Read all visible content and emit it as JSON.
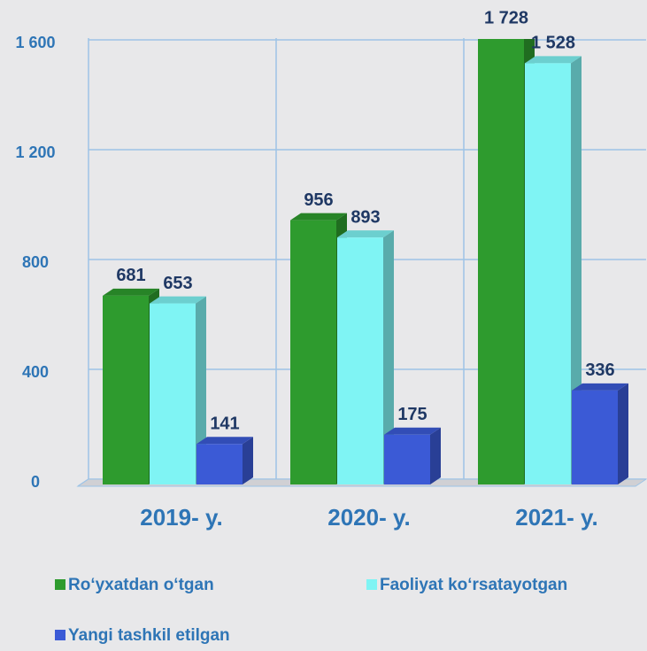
{
  "chart_data": {
    "type": "bar3d",
    "categories": [
      "2019- y.",
      "2020- y.",
      "2021- y."
    ],
    "series": [
      {
        "name": "Ro‘yxatdan o‘tgan",
        "color": "#2e9b2e",
        "values": [
          681,
          956,
          1728
        ],
        "value_labels": [
          "681",
          "956",
          "1 728"
        ]
      },
      {
        "name": "Faoliyat ko‘rsatayotgan",
        "color": "#7ff4f4",
        "values": [
          653,
          893,
          1528
        ],
        "value_labels": [
          "653",
          "893",
          "1 528"
        ]
      },
      {
        "name": "Yangi tashkil etilgan",
        "color": "#3b5ad6",
        "values": [
          141,
          175,
          336
        ],
        "value_labels": [
          "141",
          "175",
          "336"
        ]
      }
    ],
    "ylim": [
      0,
      1600
    ],
    "yticks": [
      0,
      400,
      800,
      {
        "value": 1200,
        "label": "1 200"
      },
      {
        "value": 1600,
        "label": "1 600"
      }
    ],
    "grid": true
  }
}
